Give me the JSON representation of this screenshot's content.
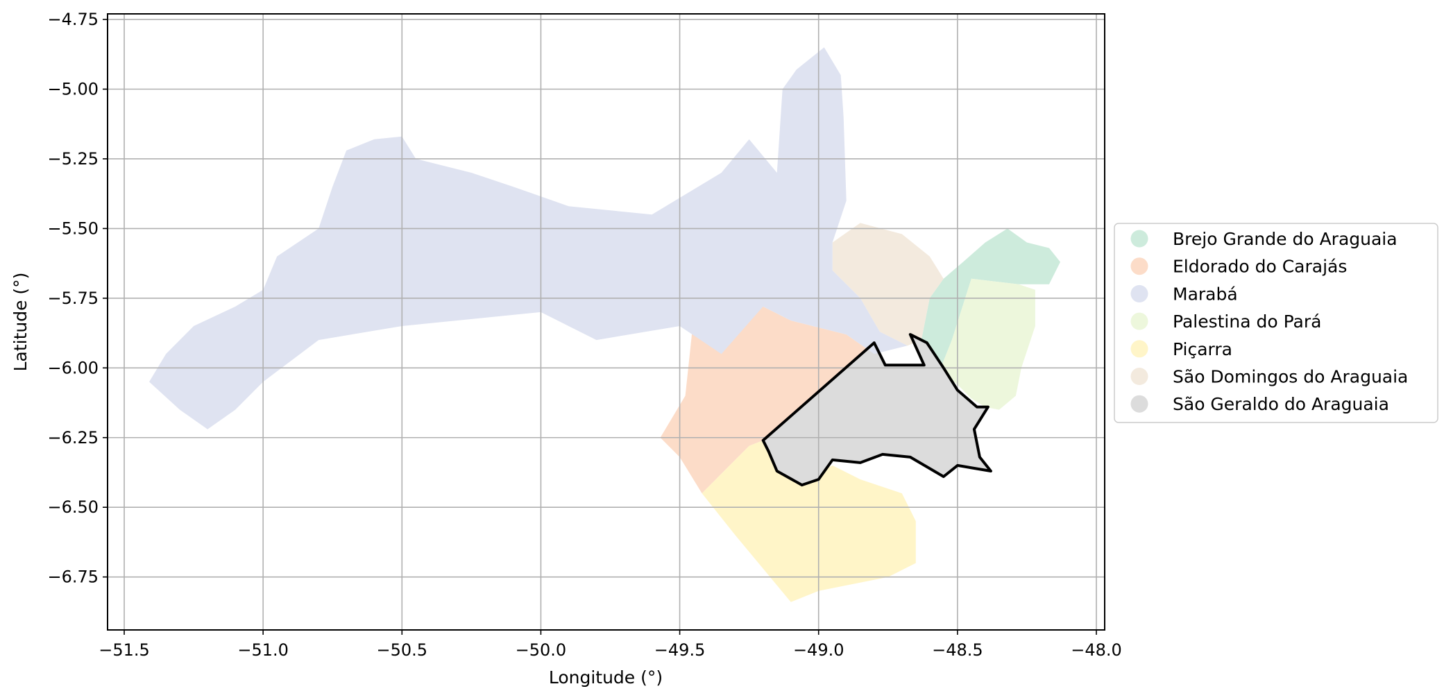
{
  "chart_data": {
    "type": "choropleth-map",
    "xlabel": "Longitude (°)",
    "ylabel": "Latitude (°)",
    "xlim": [
      -51.56,
      -47.97
    ],
    "ylim": [
      -6.94,
      -4.73
    ],
    "x_ticks": [
      -51.5,
      -51.0,
      -50.5,
      -50.0,
      -49.5,
      -49.0,
      -48.5,
      -48.0
    ],
    "x_tick_labels": [
      "−51.5",
      "−51.0",
      "−50.5",
      "−50.0",
      "−49.5",
      "−49.0",
      "−48.5",
      "−48.0"
    ],
    "y_ticks": [
      -4.75,
      -5.0,
      -5.25,
      -5.5,
      -5.75,
      -6.0,
      -6.25,
      -6.5,
      -6.75
    ],
    "y_tick_labels": [
      "−4.75",
      "−5.00",
      "−5.25",
      "−5.50",
      "−5.75",
      "−6.00",
      "−6.25",
      "−6.50",
      "−6.75"
    ],
    "grid": true,
    "legend_position": "right",
    "highlighted": "São Geraldo do Araguaia",
    "regions": [
      {
        "name": "Brejo Grande do Araguaia",
        "color": "#cdebdc",
        "coords": [
          [
            -48.48,
            -5.62
          ],
          [
            -48.4,
            -5.55
          ],
          [
            -48.32,
            -5.5
          ],
          [
            -48.25,
            -5.55
          ],
          [
            -48.17,
            -5.57
          ],
          [
            -48.13,
            -5.62
          ],
          [
            -48.17,
            -5.7
          ],
          [
            -48.28,
            -5.7
          ],
          [
            -48.45,
            -5.68
          ],
          [
            -48.52,
            -5.9
          ],
          [
            -48.56,
            -6.0
          ],
          [
            -48.6,
            -5.98
          ],
          [
            -48.63,
            -5.9
          ],
          [
            -48.6,
            -5.75
          ],
          [
            -48.55,
            -5.68
          ]
        ]
      },
      {
        "name": "Palestina do Pará",
        "color": "#edf7dc",
        "coords": [
          [
            -48.45,
            -5.68
          ],
          [
            -48.28,
            -5.7
          ],
          [
            -48.22,
            -5.72
          ],
          [
            -48.22,
            -5.85
          ],
          [
            -48.27,
            -6.0
          ],
          [
            -48.29,
            -6.1
          ],
          [
            -48.35,
            -6.15
          ],
          [
            -48.4,
            -6.14
          ],
          [
            -48.45,
            -6.11
          ],
          [
            -48.5,
            -6.06
          ],
          [
            -48.55,
            -6.02
          ],
          [
            -48.56,
            -6.0
          ],
          [
            -48.52,
            -5.9
          ]
        ]
      },
      {
        "name": "São Domingos do Araguaia",
        "color": "#f3eade",
        "coords": [
          [
            -48.95,
            -5.55
          ],
          [
            -48.85,
            -5.48
          ],
          [
            -48.7,
            -5.52
          ],
          [
            -48.6,
            -5.6
          ],
          [
            -48.55,
            -5.68
          ],
          [
            -48.6,
            -5.75
          ],
          [
            -48.63,
            -5.9
          ],
          [
            -48.68,
            -5.92
          ],
          [
            -48.78,
            -5.87
          ],
          [
            -48.85,
            -5.75
          ],
          [
            -48.95,
            -5.65
          ]
        ]
      },
      {
        "name": "Eldorado do Carajás",
        "color": "#fcdcc8",
        "coords": [
          [
            -49.2,
            -5.78
          ],
          [
            -49.45,
            -5.82
          ],
          [
            -49.48,
            -6.1
          ],
          [
            -49.57,
            -6.25
          ],
          [
            -49.5,
            -6.32
          ],
          [
            -49.42,
            -6.45
          ],
          [
            -49.25,
            -6.28
          ],
          [
            -49.2,
            -6.26
          ],
          [
            -48.95,
            -6.07
          ],
          [
            -48.8,
            -5.95
          ],
          [
            -48.9,
            -5.88
          ],
          [
            -49.1,
            -5.83
          ]
        ]
      },
      {
        "name": "Piçarra",
        "color": "#fff5c8",
        "coords": [
          [
            -49.42,
            -6.45
          ],
          [
            -49.3,
            -6.6
          ],
          [
            -49.1,
            -6.84
          ],
          [
            -49.0,
            -6.8
          ],
          [
            -48.75,
            -6.75
          ],
          [
            -48.65,
            -6.7
          ],
          [
            -48.65,
            -6.55
          ],
          [
            -48.7,
            -6.45
          ],
          [
            -48.85,
            -6.4
          ],
          [
            -48.95,
            -6.35
          ],
          [
            -49.05,
            -6.4
          ],
          [
            -49.15,
            -6.33
          ],
          [
            -49.2,
            -6.26
          ],
          [
            -49.25,
            -6.28
          ]
        ]
      },
      {
        "name": "São Geraldo do Araguaia",
        "color": "#dcdcdc",
        "coords": [
          [
            -49.2,
            -6.26
          ],
          [
            -48.8,
            -5.91
          ],
          [
            -48.76,
            -5.99
          ],
          [
            -48.62,
            -5.99
          ],
          [
            -48.67,
            -5.88
          ],
          [
            -48.61,
            -5.91
          ],
          [
            -48.55,
            -6.0
          ],
          [
            -48.5,
            -6.08
          ],
          [
            -48.43,
            -6.14
          ],
          [
            -48.39,
            -6.14
          ],
          [
            -48.44,
            -6.22
          ],
          [
            -48.42,
            -6.32
          ],
          [
            -48.38,
            -6.37
          ],
          [
            -48.5,
            -6.35
          ],
          [
            -48.55,
            -6.39
          ],
          [
            -48.67,
            -6.32
          ],
          [
            -48.77,
            -6.31
          ],
          [
            -48.85,
            -6.34
          ],
          [
            -48.95,
            -6.33
          ],
          [
            -49.0,
            -6.4
          ],
          [
            -49.06,
            -6.42
          ],
          [
            -49.15,
            -6.37
          ],
          [
            -49.18,
            -6.3
          ]
        ]
      },
      {
        "name": "Marabá",
        "color": "#dfe3f1",
        "coords": [
          [
            -51.41,
            -6.05
          ],
          [
            -51.35,
            -5.95
          ],
          [
            -51.25,
            -5.85
          ],
          [
            -51.1,
            -5.78
          ],
          [
            -51.0,
            -5.72
          ],
          [
            -50.95,
            -5.6
          ],
          [
            -50.8,
            -5.5
          ],
          [
            -50.75,
            -5.35
          ],
          [
            -50.7,
            -5.22
          ],
          [
            -50.6,
            -5.18
          ],
          [
            -50.5,
            -5.17
          ],
          [
            -50.45,
            -5.25
          ],
          [
            -50.25,
            -5.3
          ],
          [
            -50.1,
            -5.35
          ],
          [
            -49.9,
            -5.42
          ],
          [
            -49.6,
            -5.45
          ],
          [
            -49.35,
            -5.3
          ],
          [
            -49.25,
            -5.18
          ],
          [
            -49.15,
            -5.3
          ],
          [
            -49.13,
            -5.0
          ],
          [
            -49.08,
            -4.93
          ],
          [
            -48.98,
            -4.85
          ],
          [
            -48.92,
            -4.95
          ],
          [
            -48.91,
            -5.1
          ],
          [
            -48.9,
            -5.4
          ],
          [
            -48.95,
            -5.55
          ],
          [
            -48.95,
            -5.65
          ],
          [
            -48.85,
            -5.75
          ],
          [
            -48.78,
            -5.87
          ],
          [
            -48.68,
            -5.92
          ],
          [
            -48.8,
            -5.95
          ],
          [
            -48.9,
            -5.88
          ],
          [
            -49.1,
            -5.83
          ],
          [
            -49.2,
            -5.78
          ],
          [
            -49.35,
            -5.95
          ],
          [
            -49.5,
            -5.85
          ],
          [
            -49.8,
            -5.9
          ],
          [
            -50.0,
            -5.8
          ],
          [
            -50.5,
            -5.85
          ],
          [
            -50.8,
            -5.9
          ],
          [
            -51.0,
            -6.05
          ],
          [
            -51.1,
            -6.15
          ],
          [
            -51.2,
            -6.22
          ],
          [
            -51.3,
            -6.15
          ]
        ]
      }
    ]
  }
}
